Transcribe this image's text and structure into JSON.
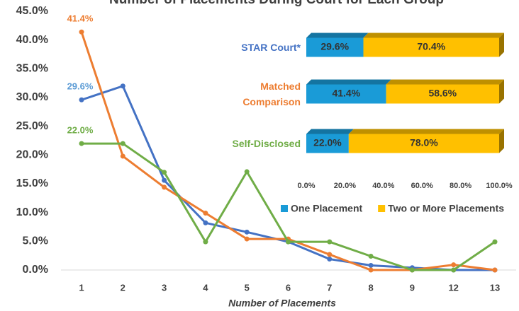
{
  "chart_data": [
    {
      "type": "line",
      "title": "Number of Placements During Court for Each Group",
      "x_label": "Number of Placements",
      "categories": [
        "1",
        "2",
        "3",
        "4",
        "5",
        "6",
        "7",
        "8",
        "9",
        "12",
        "13"
      ],
      "series": [
        {
          "name": "STAR Court*",
          "color": "#4472c4",
          "values": [
            29.6,
            32.0,
            15.6,
            8.2,
            6.6,
            4.9,
            1.9,
            0.8,
            0.4,
            0,
            0
          ],
          "value_labels": [
            "29.6%",
            null,
            null,
            null,
            null,
            null,
            null,
            null,
            null,
            null,
            null
          ],
          "label_color": "#5b9bd5"
        },
        {
          "name": "Matched Comparison",
          "color": "#ed7d31",
          "values": [
            41.4,
            19.8,
            14.4,
            9.9,
            5.4,
            5.4,
            2.7,
            0,
            0,
            0.9,
            0
          ],
          "value_labels": [
            "41.4%",
            null,
            null,
            null,
            null,
            null,
            null,
            null,
            null,
            null,
            null
          ],
          "label_color": "#ed7d31"
        },
        {
          "name": "Self-Disclosed",
          "color": "#70ad47",
          "values": [
            22.0,
            22.0,
            17.0,
            4.9,
            17.1,
            4.9,
            4.9,
            2.4,
            0,
            0,
            4.9
          ],
          "value_labels": [
            "22.0%",
            null,
            null,
            null,
            null,
            null,
            null,
            null,
            null,
            null,
            null
          ],
          "label_color": "#70ad47"
        }
      ],
      "ylim": [
        0,
        45
      ],
      "yticks": [
        {
          "value": 0,
          "label": "0.0%"
        },
        {
          "value": 5,
          "label": "5.0%"
        },
        {
          "value": 10,
          "label": "10.0%"
        },
        {
          "value": 15,
          "label": "15.0%"
        },
        {
          "value": 20,
          "label": "20.0%"
        },
        {
          "value": 25,
          "label": "25.0%"
        },
        {
          "value": 30,
          "label": "30.0%"
        },
        {
          "value": 35,
          "label": "35.0%"
        },
        {
          "value": 40,
          "label": "40.0%"
        },
        {
          "value": 45,
          "label": "45.0%"
        }
      ]
    },
    {
      "type": "stacked_bar_horizontal",
      "categories": [
        "STAR Court*",
        "Matched Comparison",
        "Self-Disclosed"
      ],
      "category_colors": [
        "#4472c4",
        "#ed7d31",
        "#70ad47"
      ],
      "series": [
        {
          "name": "One Placement",
          "color": "#1a9bd7",
          "values": [
            29.6,
            41.4,
            22.0
          ],
          "value_labels": [
            "29.6%",
            "41.4%",
            "22.0%"
          ]
        },
        {
          "name": "Two or More Placements",
          "color": "#ffc000",
          "values": [
            70.4,
            58.6,
            78.0
          ],
          "value_labels": [
            "70.4%",
            "58.6%",
            "78.0%"
          ]
        }
      ],
      "xlim": [
        0,
        100
      ],
      "xticks": [
        {
          "value": 0,
          "label": "0.0%"
        },
        {
          "value": 20,
          "label": "20.0%"
        },
        {
          "value": 40,
          "label": "40.0%"
        },
        {
          "value": 60,
          "label": "60.0%"
        },
        {
          "value": 80,
          "label": "80.0%"
        },
        {
          "value": 100,
          "label": "100.0%"
        }
      ],
      "legend": "bottom"
    }
  ]
}
